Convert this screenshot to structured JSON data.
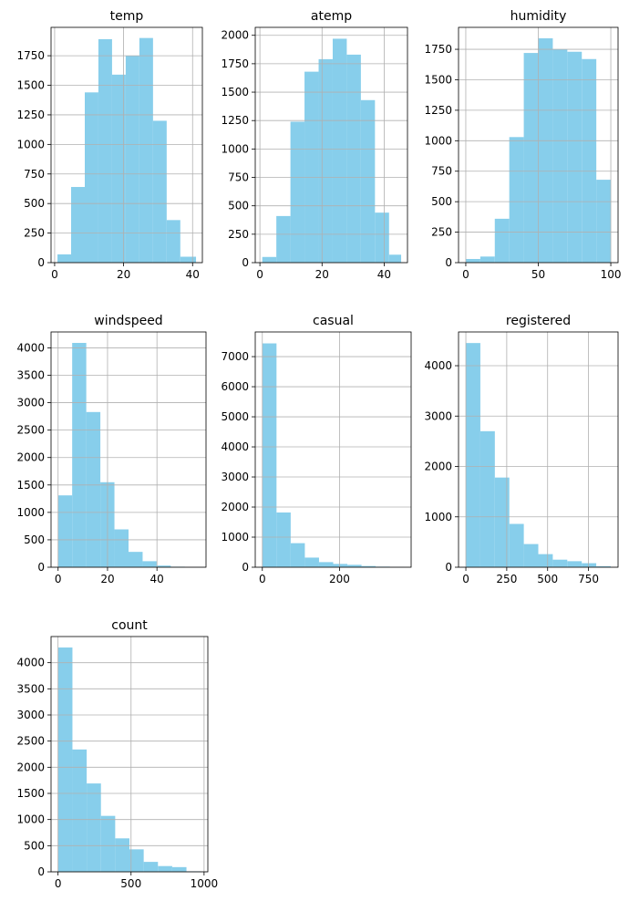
{
  "chart_data": [
    {
      "type": "bar",
      "title": "temp",
      "xlim": [
        -1.04,
        42.84
      ],
      "ylim": [
        0,
        1990
      ],
      "xticks": [
        0,
        20,
        40
      ],
      "yticks": [
        0,
        250,
        500,
        750,
        1000,
        1250,
        1500,
        1750
      ],
      "bin_edges": [
        0.82,
        4.78,
        8.74,
        12.69,
        16.65,
        20.61,
        24.57,
        28.53,
        32.49,
        36.44,
        41.0
      ],
      "values": [
        70,
        640,
        1440,
        1890,
        1590,
        1750,
        1900,
        1200,
        360,
        50
      ],
      "grid": true,
      "color": "#87ceeb"
    },
    {
      "type": "bar",
      "title": "atemp",
      "xlim": [
        -1.5,
        47.5
      ],
      "ylim": [
        0,
        2070
      ],
      "xticks": [
        0,
        20,
        40
      ],
      "yticks": [
        0,
        250,
        500,
        750,
        1000,
        1250,
        1500,
        1750,
        2000
      ],
      "bin_edges": [
        0.76,
        5.29,
        9.83,
        14.36,
        18.9,
        23.43,
        27.96,
        32.5,
        37.03,
        41.57,
        45.46
      ],
      "values": [
        50,
        410,
        1240,
        1680,
        1790,
        1970,
        1830,
        1430,
        440,
        70
      ],
      "grid": true,
      "color": "#87ceeb"
    },
    {
      "type": "bar",
      "title": "humidity",
      "xlim": [
        -5,
        105
      ],
      "ylim": [
        0,
        1930
      ],
      "xticks": [
        0,
        50,
        100
      ],
      "yticks": [
        0,
        250,
        500,
        750,
        1000,
        1250,
        1500,
        1750
      ],
      "bin_edges": [
        0,
        10,
        20,
        30,
        40,
        50,
        60,
        70,
        80,
        90,
        100
      ],
      "values": [
        30,
        50,
        360,
        1030,
        1720,
        1840,
        1750,
        1730,
        1670,
        680
      ],
      "grid": true,
      "color": "#87ceeb"
    },
    {
      "type": "bar",
      "title": "windspeed",
      "xlim": [
        -2.85,
        59.85
      ],
      "ylim": [
        0,
        4290
      ],
      "xticks": [
        0,
        20,
        40
      ],
      "yticks": [
        0,
        500,
        1000,
        1500,
        2000,
        2500,
        3000,
        3500,
        4000
      ],
      "bin_edges": [
        0,
        5.7,
        11.4,
        17.1,
        22.8,
        28.5,
        34.2,
        39.9,
        45.6,
        51.3,
        57.0
      ],
      "values": [
        1310,
        4090,
        2830,
        1550,
        690,
        280,
        110,
        30,
        10,
        5
      ],
      "grid": true,
      "color": "#87ceeb"
    },
    {
      "type": "bar",
      "title": "casual",
      "xlim": [
        -18.35,
        385.35
      ],
      "ylim": [
        0,
        7820
      ],
      "xticks": [
        0,
        200
      ],
      "yticks": [
        0,
        1000,
        2000,
        3000,
        4000,
        5000,
        6000,
        7000
      ],
      "bin_edges": [
        0,
        36.7,
        73.4,
        110.1,
        146.8,
        183.5,
        220.2,
        256.9,
        293.6,
        330.3,
        367.0
      ],
      "values": [
        7440,
        1820,
        800,
        320,
        170,
        110,
        80,
        40,
        20,
        10
      ],
      "grid": true,
      "color": "#87ceeb"
    },
    {
      "type": "bar",
      "title": "registered",
      "xlim": [
        -44.8,
        930.8
      ],
      "ylim": [
        0,
        4670
      ],
      "xticks": [
        0,
        250,
        500,
        750
      ],
      "yticks": [
        0,
        1000,
        2000,
        3000,
        4000
      ],
      "bin_edges": [
        0,
        88.6,
        177.2,
        265.8,
        354.4,
        443.0,
        531.6,
        620.2,
        708.8,
        797.4,
        886.0
      ],
      "values": [
        4450,
        2700,
        1780,
        860,
        460,
        260,
        150,
        120,
        80,
        20
      ],
      "grid": true,
      "color": "#87ceeb"
    },
    {
      "type": "bar",
      "title": "count",
      "xlim": [
        -47.8,
        1025.8
      ],
      "ylim": [
        0,
        4500
      ],
      "xticks": [
        0,
        500,
        1000
      ],
      "yticks": [
        0,
        500,
        1000,
        1500,
        2000,
        2500,
        3000,
        3500,
        4000
      ],
      "bin_edges": [
        1,
        98.6,
        196.2,
        293.8,
        391.4,
        489.0,
        586.6,
        684.2,
        781.8,
        879.4,
        977.0
      ],
      "values": [
        4290,
        2340,
        1690,
        1070,
        640,
        430,
        190,
        110,
        90,
        10
      ],
      "grid": true,
      "color": "#87ceeb"
    }
  ]
}
